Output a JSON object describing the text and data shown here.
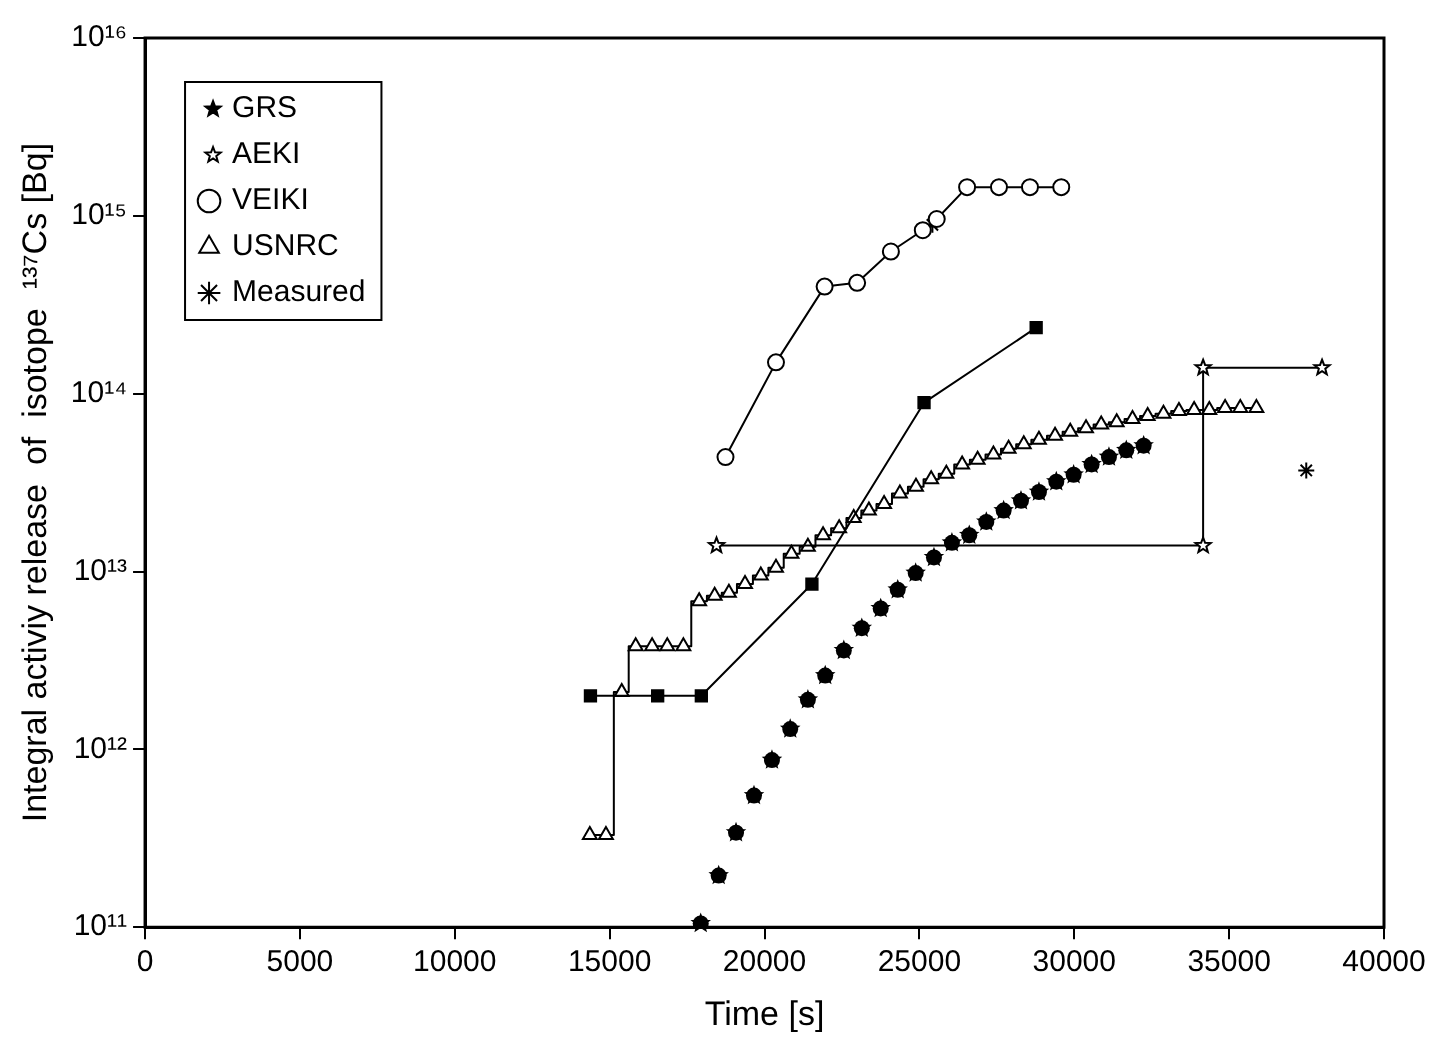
{
  "chart_data": {
    "type": "line",
    "xlabel": "Time [s]",
    "ylabel": "Integral activiy release  of  isotope  ¹³⁷Cs [Bq]",
    "xlim": [
      0,
      40000
    ],
    "xticks": [
      0,
      5000,
      10000,
      15000,
      20000,
      25000,
      30000,
      35000,
      40000
    ],
    "ylim": [
      100000000000.0,
      1e+16
    ],
    "log": "y",
    "yticks": [
      {
        "value": 100000000000.0,
        "label": "10¹¹"
      },
      {
        "value": 1000000000000.0,
        "label": "10¹²"
      },
      {
        "value": 10000000000000.0,
        "label": "10¹³"
      },
      {
        "value": 100000000000000.0,
        "label": "10¹⁴"
      },
      {
        "value": 1000000000000000.0,
        "label": "10¹⁵"
      },
      {
        "value": 1e+16,
        "label": "10¹⁶"
      }
    ],
    "grid": false,
    "legend": "top left",
    "series": [
      {
        "type": "line",
        "color": "#000000",
        "marker": "square",
        "x": [
          14380,
          16550,
          17960,
          21530,
          25150,
          28770
        ],
        "values": [
          2000000000000.0,
          2000000000000.0,
          2000000000000.0,
          8500000000000.0,
          89000000000000.0,
          235000000000000.0
        ]
      },
      {
        "type": "scatter",
        "name": "GRS",
        "color": "#000000",
        "marker": "star",
        "x": [
          17940,
          18520,
          19080,
          19660,
          20240,
          20830,
          21400,
          21960,
          22560,
          23140,
          23750,
          24300,
          24880,
          25470,
          26050,
          26610,
          27160,
          27720,
          28280,
          28860,
          29420,
          29980,
          30560,
          31120,
          31680,
          32240
        ],
        "values": [
          105000000000.0,
          195000000000.0,
          340000000000.0,
          550000000000.0,
          870000000000.0,
          1300000000000.0,
          1900000000000.0,
          2600000000000.0,
          3600000000000.0,
          4800000000000.0,
          6200000000000.0,
          7900000000000.0,
          9800000000000.0,
          12000000000000.0,
          14500000000000.0,
          16000000000000.0,
          19000000000000.0,
          22000000000000.0,
          25000000000000.0,
          28000000000000.0,
          32000000000000.0,
          35000000000000.0,
          40000000000000.0,
          44000000000000.0,
          48000000000000.0,
          51000000000000.0
        ]
      },
      {
        "type": "line",
        "name": "AEKI",
        "color": "#000000",
        "marker": "star",
        "x": [
          18450,
          34160,
          34160,
          38000
        ],
        "values": [
          14000000000000.0,
          14000000000000.0,
          140000000000000.0,
          140000000000000.0
        ]
      },
      {
        "type": "line",
        "name": "VEIKI",
        "color": "#000000",
        "marker": "circle",
        "x": [
          18740,
          20370,
          21940,
          22990,
          24080,
          25110,
          25560,
          26540,
          27570,
          28570,
          29580
        ],
        "values": [
          44000000000000.0,
          150000000000000.0,
          400000000000000.0,
          420000000000000.0,
          630000000000000.0,
          830000000000000.0,
          960000000000000.0,
          1450000000000000.0,
          1450000000000000.0,
          1450000000000000.0,
          1450000000000000.0
        ]
      },
      {
        "type": "step",
        "name": "USNRC",
        "color": "#000000",
        "marker": "triangle",
        "x": [
          14360,
          14880,
          15390,
          15840,
          16370,
          16860,
          17380,
          17890,
          18390,
          18850,
          19370,
          19880,
          20370,
          20870,
          21400,
          21890,
          22410,
          22880,
          23370,
          23860,
          24370,
          24890,
          25380,
          25870,
          26380,
          26880,
          27390,
          27880,
          28370,
          28860,
          29380,
          29870,
          30380,
          30870,
          31370,
          31880,
          32370,
          32880,
          33380,
          33870,
          34360,
          34870,
          35360,
          35880
        ],
        "values": [
          330000000000.0,
          330000000000.0,
          2100000000000.0,
          3800000000000.0,
          3800000000000.0,
          3800000000000.0,
          3800000000000.0,
          6800000000000.0,
          7300000000000.0,
          7600000000000.0,
          8500000000000.0,
          9500000000000.0,
          10500000000000.0,
          12600000000000.0,
          13800000000000.0,
          16000000000000.0,
          17500000000000.0,
          20000000000000.0,
          22000000000000.0,
          24000000000000.0,
          27500000000000.0,
          30000000000000.0,
          33000000000000.0,
          35500000000000.0,
          40000000000000.0,
          42500000000000.0,
          45500000000000.0,
          49000000000000.0,
          52000000000000.0,
          55000000000000.0,
          58000000000000.0,
          61000000000000.0,
          64000000000000.0,
          67000000000000.0,
          69000000000000.0,
          72000000000000.0,
          75000000000000.0,
          77000000000000.0,
          80000000000000.0,
          81000000000000.0,
          81000000000000.0,
          83000000000000.0,
          83000000000000.0,
          83000000000000.0
        ]
      },
      {
        "type": "scatter",
        "name": "Measured",
        "color": "#000000",
        "marker": "cross",
        "x": [
          25420,
          37490
        ],
        "values": [
          890000000000000.0,
          37000000000000.0
        ]
      }
    ]
  }
}
